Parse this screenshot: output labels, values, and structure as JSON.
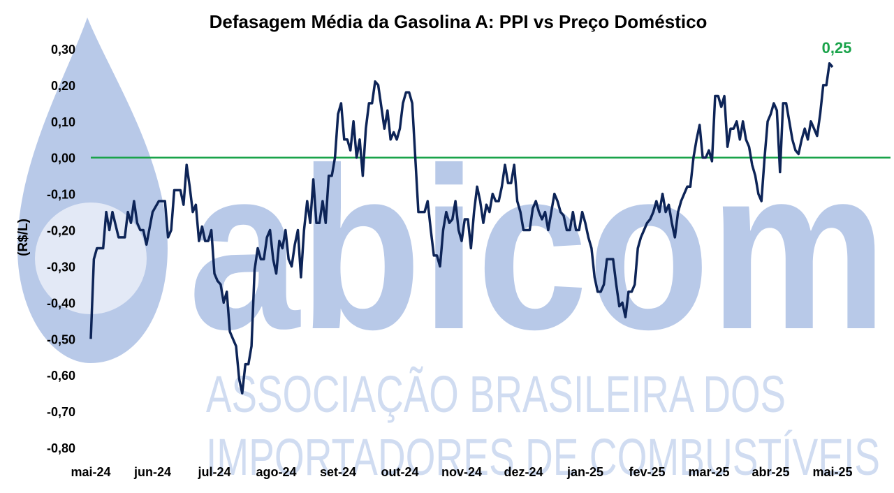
{
  "chart_data": {
    "type": "line",
    "title": "Defasagem Média da Gasolina A: PPI vs Preço Doméstico",
    "ylabel": "(R$/L)",
    "xlabel": "",
    "ylim": [
      -0.8,
      0.3
    ],
    "yticks": [
      "0,30",
      "0,20",
      "0,10",
      "0,00",
      "-0,10",
      "-0,20",
      "-0,30",
      "-0,40",
      "-0,50",
      "-0,60",
      "-0,70",
      "-0,80"
    ],
    "ytick_values": [
      0.3,
      0.2,
      0.1,
      0.0,
      -0.1,
      -0.2,
      -0.3,
      -0.4,
      -0.5,
      -0.6,
      -0.7,
      -0.8
    ],
    "xticks": [
      "mai-24",
      "jun-24",
      "jul-24",
      "ago-24",
      "set-24",
      "out-24",
      "nov-24",
      "dez-24",
      "jan-25",
      "fev-25",
      "mar-25",
      "abr-25",
      "mai-25"
    ],
    "grid": false,
    "reference_line": 0.0,
    "last_value_label": "0,25",
    "colors": {
      "line": "#0d2457",
      "reference": "#1aa34a",
      "label": "#1aa34a",
      "text": "#000000"
    },
    "series": [
      {
        "points": [
          [
            0.0,
            -0.5
          ],
          [
            0.05,
            -0.28
          ],
          [
            0.1,
            -0.25
          ],
          [
            0.2,
            -0.25
          ],
          [
            0.25,
            -0.15
          ],
          [
            0.3,
            -0.2
          ],
          [
            0.35,
            -0.15
          ],
          [
            0.45,
            -0.22
          ],
          [
            0.55,
            -0.22
          ],
          [
            0.6,
            -0.15
          ],
          [
            0.65,
            -0.18
          ],
          [
            0.7,
            -0.12
          ],
          [
            0.75,
            -0.18
          ],
          [
            0.8,
            -0.2
          ],
          [
            0.85,
            -0.2
          ],
          [
            0.9,
            -0.24
          ],
          [
            1.0,
            -0.15
          ],
          [
            1.1,
            -0.12
          ],
          [
            1.2,
            -0.12
          ],
          [
            1.25,
            -0.22
          ],
          [
            1.3,
            -0.2
          ],
          [
            1.35,
            -0.09
          ],
          [
            1.45,
            -0.09
          ],
          [
            1.5,
            -0.13
          ],
          [
            1.55,
            -0.02
          ],
          [
            1.6,
            -0.08
          ],
          [
            1.65,
            -0.15
          ],
          [
            1.7,
            -0.13
          ],
          [
            1.75,
            -0.23
          ],
          [
            1.8,
            -0.19
          ],
          [
            1.85,
            -0.23
          ],
          [
            1.9,
            -0.23
          ],
          [
            1.95,
            -0.2
          ],
          [
            2.0,
            -0.32
          ],
          [
            2.05,
            -0.34
          ],
          [
            2.1,
            -0.35
          ],
          [
            2.15,
            -0.4
          ],
          [
            2.2,
            -0.37
          ],
          [
            2.25,
            -0.48
          ],
          [
            2.3,
            -0.5
          ],
          [
            2.35,
            -0.52
          ],
          [
            2.4,
            -0.61
          ],
          [
            2.45,
            -0.65
          ],
          [
            2.5,
            -0.57
          ],
          [
            2.55,
            -0.57
          ],
          [
            2.6,
            -0.52
          ],
          [
            2.65,
            -0.31
          ],
          [
            2.7,
            -0.25
          ],
          [
            2.75,
            -0.28
          ],
          [
            2.8,
            -0.28
          ],
          [
            2.85,
            -0.22
          ],
          [
            2.9,
            -0.2
          ],
          [
            2.95,
            -0.28
          ],
          [
            3.0,
            -0.32
          ],
          [
            3.05,
            -0.23
          ],
          [
            3.1,
            -0.25
          ],
          [
            3.15,
            -0.2
          ],
          [
            3.2,
            -0.28
          ],
          [
            3.25,
            -0.3
          ],
          [
            3.3,
            -0.24
          ],
          [
            3.35,
            -0.2
          ],
          [
            3.4,
            -0.33
          ],
          [
            3.45,
            -0.2
          ],
          [
            3.5,
            -0.12
          ],
          [
            3.55,
            -0.18
          ],
          [
            3.6,
            -0.06
          ],
          [
            3.65,
            -0.18
          ],
          [
            3.7,
            -0.18
          ],
          [
            3.75,
            -0.12
          ],
          [
            3.8,
            -0.18
          ],
          [
            3.85,
            -0.05
          ],
          [
            3.9,
            -0.05
          ],
          [
            3.95,
            0.0
          ],
          [
            4.0,
            0.12
          ],
          [
            4.05,
            0.15
          ],
          [
            4.1,
            0.05
          ],
          [
            4.15,
            0.05
          ],
          [
            4.2,
            0.02
          ],
          [
            4.25,
            0.1
          ],
          [
            4.3,
            0.0
          ],
          [
            4.35,
            0.05
          ],
          [
            4.4,
            -0.05
          ],
          [
            4.45,
            0.08
          ],
          [
            4.5,
            0.15
          ],
          [
            4.55,
            0.15
          ],
          [
            4.6,
            0.21
          ],
          [
            4.65,
            0.2
          ],
          [
            4.7,
            0.14
          ],
          [
            4.75,
            0.08
          ],
          [
            4.8,
            0.13
          ],
          [
            4.85,
            0.05
          ],
          [
            4.9,
            0.07
          ],
          [
            4.95,
            0.05
          ],
          [
            5.0,
            0.08
          ],
          [
            5.05,
            0.15
          ],
          [
            5.1,
            0.18
          ],
          [
            5.15,
            0.18
          ],
          [
            5.2,
            0.15
          ],
          [
            5.25,
            0.0
          ],
          [
            5.3,
            -0.15
          ],
          [
            5.35,
            -0.15
          ],
          [
            5.4,
            -0.15
          ],
          [
            5.45,
            -0.12
          ],
          [
            5.5,
            -0.2
          ],
          [
            5.55,
            -0.27
          ],
          [
            5.6,
            -0.27
          ],
          [
            5.65,
            -0.3
          ],
          [
            5.7,
            -0.2
          ],
          [
            5.75,
            -0.15
          ],
          [
            5.8,
            -0.18
          ],
          [
            5.85,
            -0.17
          ],
          [
            5.9,
            -0.12
          ],
          [
            5.95,
            -0.2
          ],
          [
            6.0,
            -0.23
          ],
          [
            6.05,
            -0.17
          ],
          [
            6.1,
            -0.17
          ],
          [
            6.15,
            -0.25
          ],
          [
            6.2,
            -0.15
          ],
          [
            6.25,
            -0.08
          ],
          [
            6.3,
            -0.12
          ],
          [
            6.35,
            -0.18
          ],
          [
            6.4,
            -0.13
          ],
          [
            6.45,
            -0.15
          ],
          [
            6.5,
            -0.1
          ],
          [
            6.55,
            -0.12
          ],
          [
            6.6,
            -0.12
          ],
          [
            6.65,
            -0.08
          ],
          [
            6.7,
            -0.02
          ],
          [
            6.75,
            -0.07
          ],
          [
            6.8,
            -0.07
          ],
          [
            6.85,
            -0.02
          ],
          [
            6.9,
            -0.12
          ],
          [
            6.95,
            -0.15
          ],
          [
            7.0,
            -0.2
          ],
          [
            7.05,
            -0.2
          ],
          [
            7.1,
            -0.2
          ],
          [
            7.15,
            -0.14
          ],
          [
            7.2,
            -0.12
          ],
          [
            7.25,
            -0.15
          ],
          [
            7.3,
            -0.17
          ],
          [
            7.35,
            -0.15
          ],
          [
            7.4,
            -0.2
          ],
          [
            7.45,
            -0.15
          ],
          [
            7.5,
            -0.1
          ],
          [
            7.55,
            -0.12
          ],
          [
            7.6,
            -0.15
          ],
          [
            7.65,
            -0.16
          ],
          [
            7.7,
            -0.2
          ],
          [
            7.75,
            -0.2
          ],
          [
            7.8,
            -0.15
          ],
          [
            7.85,
            -0.2
          ],
          [
            7.9,
            -0.2
          ],
          [
            7.95,
            -0.15
          ],
          [
            8.0,
            -0.18
          ],
          [
            8.05,
            -0.22
          ],
          [
            8.1,
            -0.25
          ],
          [
            8.15,
            -0.33
          ],
          [
            8.2,
            -0.37
          ],
          [
            8.25,
            -0.37
          ],
          [
            8.3,
            -0.35
          ],
          [
            8.35,
            -0.28
          ],
          [
            8.4,
            -0.28
          ],
          [
            8.45,
            -0.28
          ],
          [
            8.5,
            -0.35
          ],
          [
            8.55,
            -0.41
          ],
          [
            8.6,
            -0.4
          ],
          [
            8.65,
            -0.44
          ],
          [
            8.7,
            -0.37
          ],
          [
            8.75,
            -0.37
          ],
          [
            8.8,
            -0.35
          ],
          [
            8.85,
            -0.25
          ],
          [
            8.9,
            -0.22
          ],
          [
            8.95,
            -0.2
          ],
          [
            9.0,
            -0.18
          ],
          [
            9.05,
            -0.17
          ],
          [
            9.1,
            -0.15
          ],
          [
            9.15,
            -0.12
          ],
          [
            9.2,
            -0.15
          ],
          [
            9.25,
            -0.1
          ],
          [
            9.3,
            -0.15
          ],
          [
            9.35,
            -0.13
          ],
          [
            9.4,
            -0.18
          ],
          [
            9.45,
            -0.22
          ],
          [
            9.5,
            -0.15
          ],
          [
            9.55,
            -0.12
          ],
          [
            9.6,
            -0.1
          ],
          [
            9.65,
            -0.08
          ],
          [
            9.7,
            -0.08
          ],
          [
            9.75,
            0.0
          ],
          [
            9.8,
            0.05
          ],
          [
            9.85,
            0.09
          ],
          [
            9.9,
            0.0
          ],
          [
            9.95,
            0.0
          ],
          [
            10.0,
            0.02
          ],
          [
            10.05,
            -0.01
          ],
          [
            10.1,
            0.17
          ],
          [
            10.15,
            0.17
          ],
          [
            10.2,
            0.14
          ],
          [
            10.25,
            0.17
          ],
          [
            10.3,
            0.03
          ],
          [
            10.35,
            0.08
          ],
          [
            10.4,
            0.08
          ],
          [
            10.45,
            0.1
          ],
          [
            10.5,
            0.05
          ],
          [
            10.55,
            0.1
          ],
          [
            10.6,
            0.05
          ],
          [
            10.65,
            0.03
          ],
          [
            10.7,
            -0.02
          ],
          [
            10.75,
            -0.05
          ],
          [
            10.8,
            -0.1
          ],
          [
            10.85,
            -0.12
          ],
          [
            10.9,
            0.0
          ],
          [
            10.95,
            0.1
          ],
          [
            11.0,
            0.12
          ],
          [
            11.05,
            0.15
          ],
          [
            11.1,
            0.13
          ],
          [
            11.15,
            -0.04
          ],
          [
            11.2,
            0.15
          ],
          [
            11.25,
            0.15
          ],
          [
            11.3,
            0.1
          ],
          [
            11.35,
            0.05
          ],
          [
            11.4,
            0.02
          ],
          [
            11.45,
            0.01
          ],
          [
            11.5,
            0.05
          ],
          [
            11.55,
            0.08
          ],
          [
            11.6,
            0.05
          ],
          [
            11.65,
            0.1
          ],
          [
            11.7,
            0.08
          ],
          [
            11.75,
            0.06
          ],
          [
            11.8,
            0.12
          ],
          [
            11.85,
            0.2
          ],
          [
            11.9,
            0.2
          ],
          [
            11.95,
            0.26
          ],
          [
            12.0,
            0.25
          ]
        ]
      }
    ]
  },
  "watermark": {
    "brand": "abicom",
    "line1": "ASSOCIAÇÃO BRASILEIRA DOS",
    "line2": "IMPORTADORES DE COMBUSTÍVEIS"
  }
}
